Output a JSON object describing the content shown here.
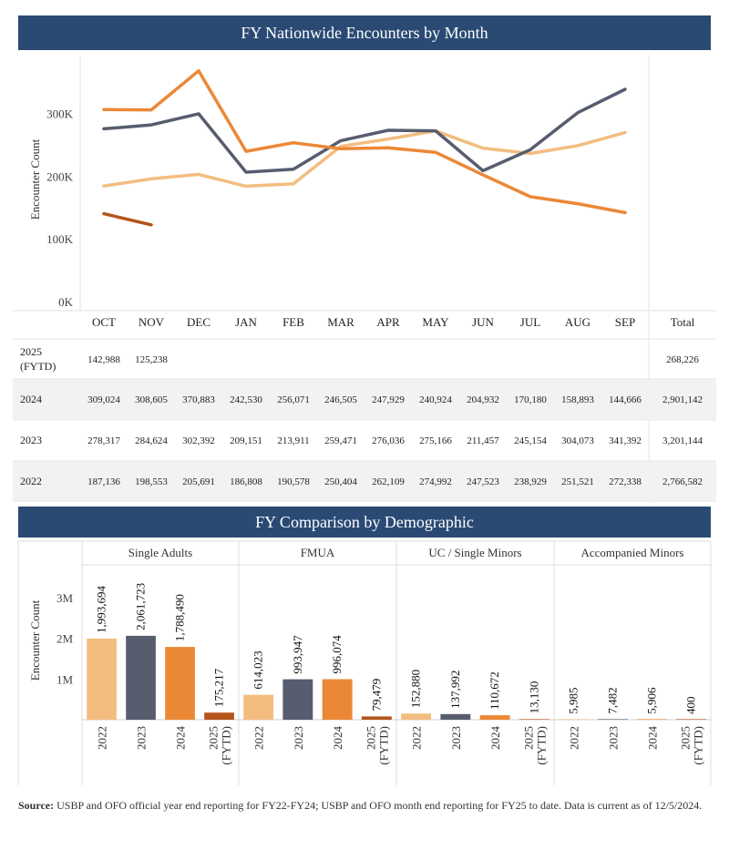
{
  "colors": {
    "banner": "#2a4a74",
    "2025": "#b5541a",
    "2024": "#eb8836",
    "2023": "#575d6e",
    "2022": "#f3bd80"
  },
  "chart_data": [
    {
      "type": "line",
      "title": "FY Nationwide Encounters by Month",
      "ylabel": "Encounter Count",
      "ylim": [
        0,
        375000
      ],
      "yticks": [
        0,
        100000,
        200000,
        300000
      ],
      "ytick_labels": [
        "0K",
        "100K",
        "200K",
        "300K"
      ],
      "grid": false,
      "categories": [
        "OCT",
        "NOV",
        "DEC",
        "JAN",
        "FEB",
        "MAR",
        "APR",
        "MAY",
        "JUN",
        "JUL",
        "AUG",
        "SEP"
      ],
      "total_label": "Total",
      "series": [
        {
          "name": "2025 (FYTD)",
          "color": "#b5541a",
          "values": [
            142988,
            125238,
            null,
            null,
            null,
            null,
            null,
            null,
            null,
            null,
            null,
            null
          ],
          "labels": [
            "142,988",
            "125,238",
            "",
            "",
            "",
            "",
            "",
            "",
            "",
            "",
            "",
            ""
          ],
          "total": "268,226"
        },
        {
          "name": "2024",
          "color": "#eb8836",
          "values": [
            309024,
            308605,
            370883,
            242530,
            256071,
            246505,
            247929,
            240924,
            204932,
            170180,
            158893,
            144666
          ],
          "labels": [
            "309,024",
            "308,605",
            "370,883",
            "242,530",
            "256,071",
            "246,505",
            "247,929",
            "240,924",
            "204,932",
            "170,180",
            "158,893",
            "144,666"
          ],
          "total": "2,901,142"
        },
        {
          "name": "2023",
          "color": "#575d6e",
          "values": [
            278317,
            284624,
            302392,
            209151,
            213911,
            259471,
            276036,
            275166,
            211457,
            245154,
            304073,
            341392
          ],
          "labels": [
            "278,317",
            "284,624",
            "302,392",
            "209,151",
            "213,911",
            "259,471",
            "276,036",
            "275,166",
            "211,457",
            "245,154",
            "304,073",
            "341,392"
          ],
          "total": "3,201,144"
        },
        {
          "name": "2022",
          "color": "#f3bd80",
          "values": [
            187136,
            198553,
            205691,
            186808,
            190578,
            250404,
            262109,
            274992,
            247523,
            238929,
            251521,
            272338
          ],
          "labels": [
            "187,136",
            "198,553",
            "205,691",
            "186,808",
            "190,578",
            "250,404",
            "262,109",
            "274,992",
            "247,523",
            "238,929",
            "251,521",
            "272,338"
          ],
          "total": "2,766,582"
        }
      ]
    },
    {
      "type": "bar",
      "title": "FY Comparison by Demographic",
      "ylabel": "Encounter Count",
      "ylim": [
        0,
        3500000
      ],
      "yticks": [
        1000000,
        2000000,
        3000000
      ],
      "ytick_labels": [
        "1M",
        "2M",
        "3M"
      ],
      "groups": [
        {
          "name": "Single Adults",
          "bars": [
            {
              "year": "2022",
              "value": 1993694,
              "label": "1,993,694",
              "color": "#f3bd80"
            },
            {
              "year": "2023",
              "value": 2061723,
              "label": "2,061,723",
              "color": "#575d6e"
            },
            {
              "year": "2024",
              "value": 1788490,
              "label": "1,788,490",
              "color": "#eb8836"
            },
            {
              "year": "2025",
              "year2": "(FYTD)",
              "value": 175217,
              "label": "175,217",
              "color": "#b5541a"
            }
          ]
        },
        {
          "name": "FMUA",
          "bars": [
            {
              "year": "2022",
              "value": 614023,
              "label": "614,023",
              "color": "#f3bd80"
            },
            {
              "year": "2023",
              "value": 993947,
              "label": "993,947",
              "color": "#575d6e"
            },
            {
              "year": "2024",
              "value": 996074,
              "label": "996,074",
              "color": "#eb8836"
            },
            {
              "year": "2025",
              "year2": "(FYTD)",
              "value": 79479,
              "label": "79,479",
              "color": "#b5541a"
            }
          ]
        },
        {
          "name": "UC / Single Minors",
          "bars": [
            {
              "year": "2022",
              "value": 152880,
              "label": "152,880",
              "color": "#f3bd80"
            },
            {
              "year": "2023",
              "value": 137992,
              "label": "137,992",
              "color": "#575d6e"
            },
            {
              "year": "2024",
              "value": 110672,
              "label": "110,672",
              "color": "#eb8836"
            },
            {
              "year": "2025",
              "year2": "(FYTD)",
              "value": 13130,
              "label": "13,130",
              "color": "#b5541a"
            }
          ]
        },
        {
          "name": "Accompanied Minors",
          "bars": [
            {
              "year": "2022",
              "value": 5985,
              "label": "5,985",
              "color": "#f3bd80"
            },
            {
              "year": "2023",
              "value": 7482,
              "label": "7,482",
              "color": "#575d6e"
            },
            {
              "year": "2024",
              "value": 5906,
              "label": "5,906",
              "color": "#eb8836"
            },
            {
              "year": "2025",
              "year2": "(FYTD)",
              "value": 400,
              "label": "400",
              "color": "#b5541a"
            }
          ]
        }
      ]
    }
  ],
  "source": {
    "label": "Source:",
    "text": " USBP and OFO official year end reporting for FY22-FY24; USBP and OFO month end reporting for FY25 to date. Data is current as of 12/5/2024."
  }
}
